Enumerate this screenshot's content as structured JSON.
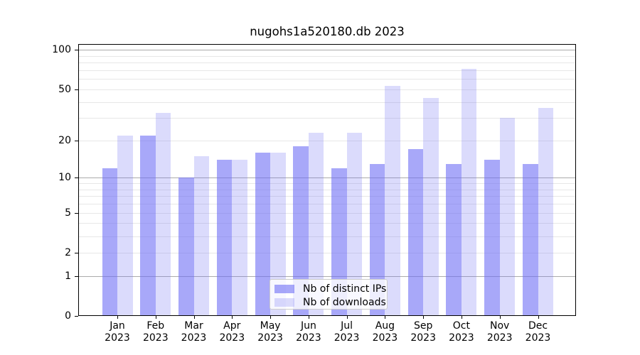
{
  "title": "nugohs1a520180.db 2023",
  "chart_data": {
    "type": "bar",
    "title": "nugohs1a520180.db 2023",
    "categories": [
      "Jan",
      "Feb",
      "Mar",
      "Apr",
      "May",
      "Jun",
      "Jul",
      "Aug",
      "Sep",
      "Oct",
      "Nov",
      "Dec"
    ],
    "category_year": "2023",
    "series": [
      {
        "name": "Nb of distinct IPs",
        "values": [
          12,
          22,
          10,
          14,
          16,
          18,
          12,
          13,
          17,
          13,
          14,
          13
        ],
        "color": "rgba(110,110,245,0.60)"
      },
      {
        "name": "Nb of downloads",
        "values": [
          22,
          33,
          15,
          14,
          16,
          23,
          23,
          53,
          43,
          72,
          30,
          36
        ],
        "color": "rgba(110,110,245,0.25)"
      }
    ],
    "yscale": "log1p",
    "ylim": [
      0,
      110
    ],
    "ytick_labels": [
      "100",
      "50",
      "20",
      "10",
      "5",
      "2",
      "1",
      "0"
    ],
    "ytick_values": [
      100,
      50,
      20,
      10,
      5,
      2,
      1,
      0
    ],
    "minor_gridline_values": [
      2,
      3,
      4,
      5,
      6,
      7,
      8,
      9,
      20,
      30,
      40,
      50,
      60,
      70,
      80,
      90
    ],
    "major_gridline_values": [
      1,
      10,
      100
    ],
    "grid": true,
    "legend_position": "lower center"
  },
  "legend": {
    "items": [
      {
        "label": "Nb of distinct IPs"
      },
      {
        "label": "Nb of downloads"
      }
    ]
  },
  "colors": {
    "bar_distinct_ips": "rgba(110,110,245,0.60)",
    "bar_downloads": "rgba(110,110,245,0.25)",
    "grid_minor": "#e7e7e7",
    "grid_major": "#ababab",
    "axis": "#000000",
    "legend_border": "#cccccc",
    "legend_background": "rgba(255,255,255,0.8)"
  }
}
